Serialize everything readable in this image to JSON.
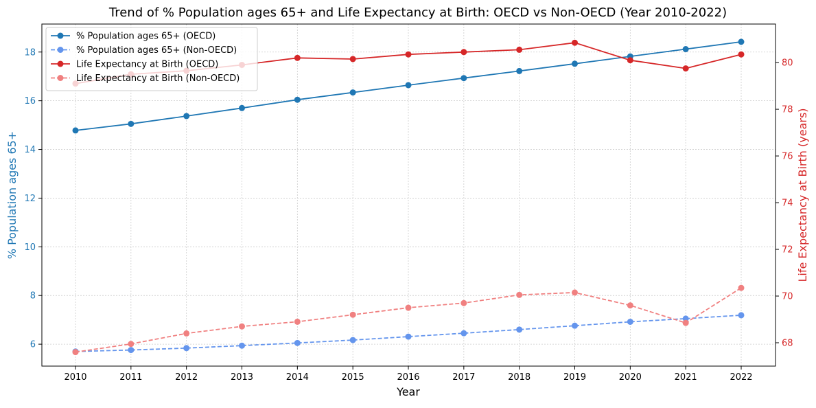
{
  "chart_data": {
    "type": "line",
    "title": "Trend of % Population ages 65+ and Life Expectancy at Birth: OECD vs Non-OECD (Year 2010-2022)",
    "xlabel": "Year",
    "ylabel_left": "% Population ages 65+",
    "ylabel_right": "Life Expectancy at Birth (years)",
    "x": [
      2010,
      2011,
      2012,
      2013,
      2014,
      2015,
      2016,
      2017,
      2018,
      2019,
      2020,
      2021,
      2022
    ],
    "x_tick_labels": [
      "2010",
      "2011",
      "2012",
      "2013",
      "2014",
      "2015",
      "2016",
      "2017",
      "2018",
      "2019",
      "2020",
      "2021",
      "2022"
    ],
    "ylim_left": [
      5.1,
      19.15
    ],
    "ylim_right": [
      67.0,
      81.65
    ],
    "yticks_left": [
      6,
      8,
      10,
      12,
      14,
      16,
      18
    ],
    "yticks_right": [
      68,
      70,
      72,
      74,
      76,
      78,
      80
    ],
    "grid": true,
    "legend_position": "top-left",
    "series": [
      {
        "name": "% Population ages 65+ (OECD)",
        "axis": "left",
        "style": "solid",
        "color": "#1f77b4",
        "values": [
          14.78,
          15.05,
          15.37,
          15.7,
          16.04,
          16.34,
          16.64,
          16.93,
          17.22,
          17.52,
          17.82,
          18.12,
          18.42
        ]
      },
      {
        "name": "% Population ages 65+ (Non-OECD)",
        "axis": "left",
        "style": "dashed",
        "color": "#6495ed",
        "values": [
          5.7,
          5.76,
          5.84,
          5.94,
          6.05,
          6.17,
          6.31,
          6.45,
          6.6,
          6.76,
          6.92,
          7.05,
          7.19
        ]
      },
      {
        "name": "Life Expectancy at Birth (OECD)",
        "axis": "right",
        "style": "solid",
        "color": "#d62728",
        "values": [
          79.1,
          79.5,
          79.65,
          79.9,
          80.2,
          80.15,
          80.35,
          80.45,
          80.55,
          80.85,
          80.1,
          79.75,
          80.35
        ]
      },
      {
        "name": "Life Expectancy at Birth (Non-OECD)",
        "axis": "right",
        "style": "dashed",
        "color": "#f08080",
        "values": [
          67.6,
          67.95,
          68.4,
          68.7,
          68.9,
          69.2,
          69.5,
          69.7,
          70.05,
          70.15,
          69.6,
          68.85,
          70.35
        ]
      }
    ]
  }
}
